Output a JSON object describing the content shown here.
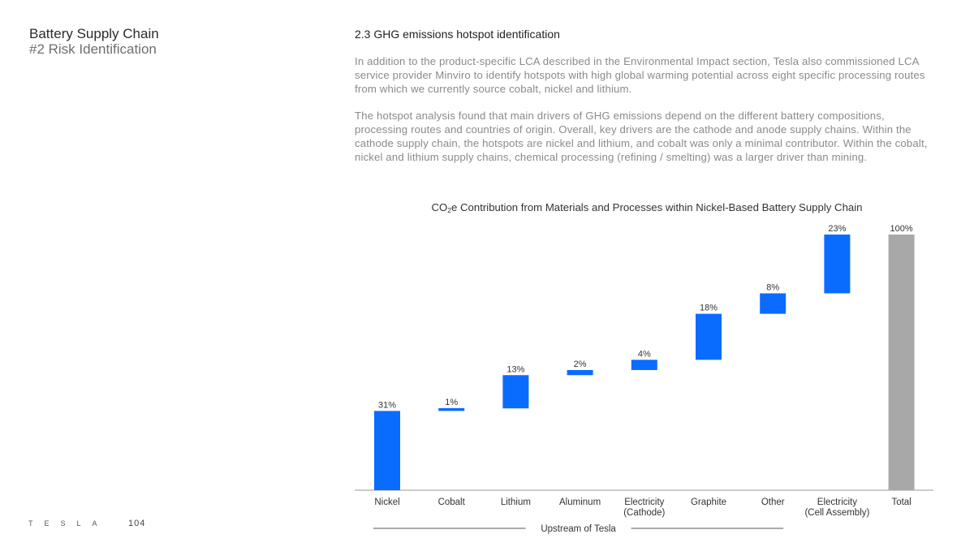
{
  "section": {
    "title": "Battery Supply Chain",
    "subtitle": "#2 Risk Identification"
  },
  "footer": {
    "brand": "TESLA",
    "page_number": "104"
  },
  "content": {
    "heading": "2.3 GHG emissions hotspot identification",
    "paragraph1": "In addition to the product-specific LCA described in the Environmental Impact section, Tesla also commissioned LCA service provider Minviro to identify hotspots with high global warming potential across eight specific processing routes from which we currently source cobalt, nickel and lithium.",
    "paragraph2": "The hotspot analysis found that main drivers of GHG emissions depend on the different battery compositions, processing routes and countries of origin. Overall, key drivers are the cathode and anode supply chains. Within the cathode supply chain, the hotspots are nickel and lithium, and cobalt was only a minimal contributor. Within the cobalt, nickel and lithium supply chains, chemical processing (refining / smelting) was a larger driver than mining."
  },
  "chart_data": {
    "type": "bar",
    "subtype": "waterfall",
    "title_prefix": "CO",
    "title_subscript": "2",
    "title_suffix": "e Contribution from Materials and Processes within Nickel-Based Battery Supply Chain",
    "categories": [
      [
        "Nickel"
      ],
      [
        "Cobalt"
      ],
      [
        "Lithium"
      ],
      [
        "Aluminum"
      ],
      [
        "Electricity",
        "(Cathode)"
      ],
      [
        "Graphite"
      ],
      [
        "Other"
      ],
      [
        "Electricity",
        "(Cell Assembly)"
      ],
      [
        "Total"
      ]
    ],
    "values": [
      31,
      1,
      13,
      2,
      4,
      18,
      8,
      23,
      100
    ],
    "value_labels": [
      "31%",
      "1%",
      "13%",
      "2%",
      "4%",
      "18%",
      "8%",
      "23%",
      "100%"
    ],
    "is_total": [
      false,
      false,
      false,
      false,
      false,
      false,
      false,
      false,
      true
    ],
    "colors": {
      "increment": "#0a6cff",
      "total": "#a8a8a8",
      "axis": "#999999",
      "text": "#333333"
    },
    "ylim": [
      0,
      100
    ],
    "grid": false,
    "group_label": "Upstream of Tesla",
    "group_span": [
      0,
      6
    ]
  }
}
